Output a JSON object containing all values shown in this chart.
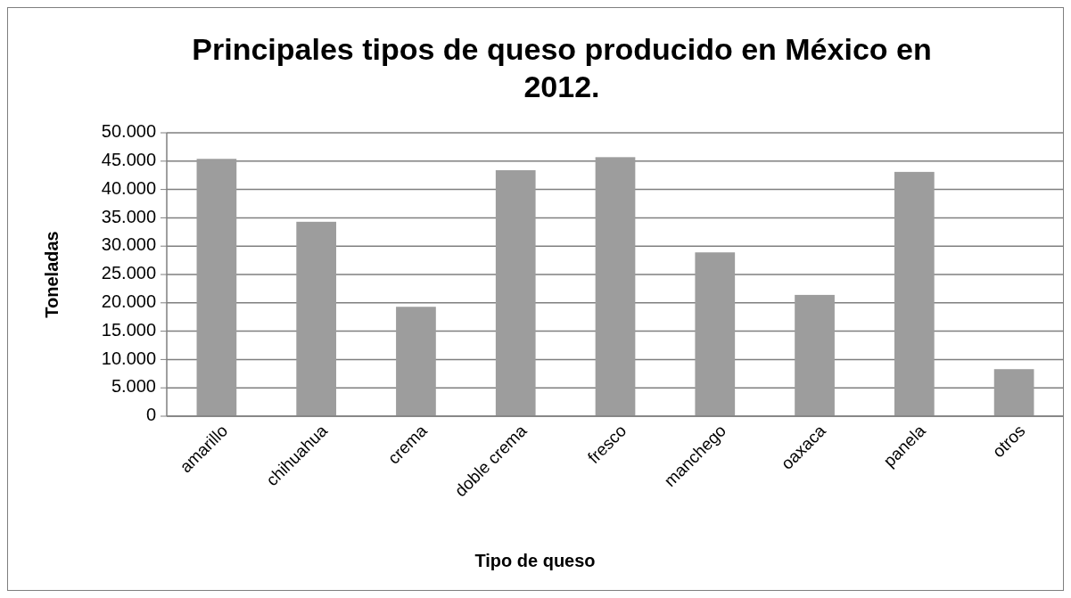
{
  "chart_data": {
    "type": "bar",
    "title": "Principales tipos de queso producido en México en 2012.",
    "xlabel": "Tipo de queso",
    "ylabel": "Toneladas",
    "categories": [
      "amarillo",
      "chihuahua",
      "crema",
      "doble crema",
      "fresco",
      "manchego",
      "oaxaca",
      "panela",
      "otros"
    ],
    "values": [
      45400,
      34300,
      19300,
      43400,
      45700,
      28900,
      21400,
      43100,
      8300
    ],
    "color": "#9d9d9d",
    "ylim": [
      0,
      50000
    ],
    "yticks": [
      {
        "value": 0,
        "label": "0"
      },
      {
        "value": 5000,
        "label": "5.000"
      },
      {
        "value": 10000,
        "label": "10.000"
      },
      {
        "value": 15000,
        "label": "15.000"
      },
      {
        "value": 20000,
        "label": "20.000"
      },
      {
        "value": 25000,
        "label": "25.000"
      },
      {
        "value": 30000,
        "label": "30.000"
      },
      {
        "value": 35000,
        "label": "35.000"
      },
      {
        "value": 40000,
        "label": "40.000"
      },
      {
        "value": 45000,
        "label": "45.000"
      },
      {
        "value": 50000,
        "label": "50.000"
      }
    ],
    "grid": "y"
  }
}
